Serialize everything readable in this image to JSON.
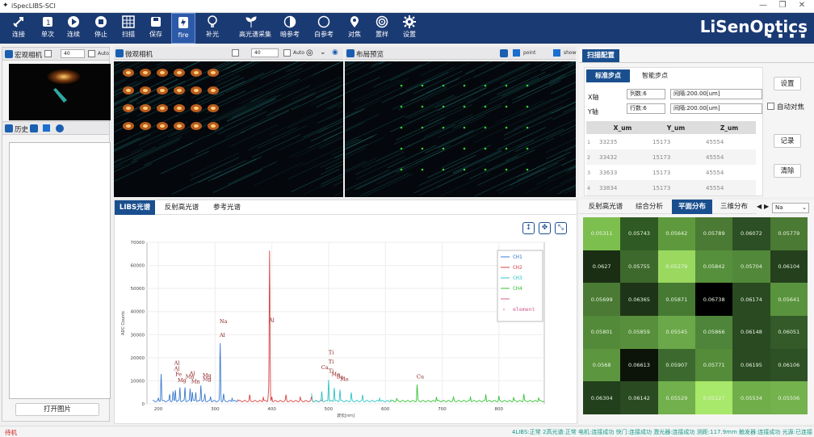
{
  "app": {
    "title": "iSpecLIBS-SCI"
  },
  "toolbar": [
    {
      "label": "连接",
      "icon": "link-icon"
    },
    {
      "label": "单次",
      "icon": "single-shot-icon"
    },
    {
      "label": "连续",
      "icon": "play-icon"
    },
    {
      "label": "停止",
      "icon": "stop-icon"
    },
    {
      "label": "扫描",
      "icon": "grid-icon"
    },
    {
      "label": "保存",
      "icon": "save-icon"
    },
    {
      "label": "fire",
      "icon": "fire-icon"
    },
    {
      "label": "补光",
      "icon": "bulb-icon"
    },
    {
      "label": "高光谱采集",
      "icon": "sprout-icon"
    },
    {
      "label": "暗参考",
      "icon": "half-moon-icon"
    },
    {
      "label": "白参考",
      "icon": "white-circle-icon"
    },
    {
      "label": "对焦",
      "icon": "pin-icon"
    },
    {
      "label": "置样",
      "icon": "target-icon"
    },
    {
      "label": "设置",
      "icon": "gear-icon"
    }
  ],
  "brand": {
    "name": "LiSenOptics",
    "tagline": "■ ■ ■ ■"
  },
  "macro": {
    "title": "宏观相机",
    "spin_value": "40",
    "auto_label": "Auto"
  },
  "micro": {
    "title": "微观相机",
    "spin_value": "40",
    "auto_label": "Auto"
  },
  "layout_preview": {
    "title": "布局预览",
    "point_label": "point",
    "show_label": "show"
  },
  "history": {
    "title": "历史",
    "open_image": "打开图片"
  },
  "spectrum_tabs": [
    "LIBS光谱",
    "反射高光谱",
    "参考光谱"
  ],
  "spectrum_chart": {
    "type": "line",
    "xlabel": "波长[nm]",
    "ylabel": "ADC Counts",
    "xlim": [
      180,
      880
    ],
    "ylim": [
      0,
      70000
    ],
    "yticks": [
      "0",
      "10000",
      "20000",
      "30000",
      "40000",
      "50000",
      "60000",
      "70000"
    ],
    "xticks": [
      "200",
      "300",
      "400",
      "500",
      "600",
      "700",
      "800"
    ],
    "legend": [
      "CH1",
      "CH2",
      "CH3",
      "CH4",
      "",
      "element"
    ],
    "legend_colors": [
      "#3b7ad0",
      "#d84444",
      "#2ec4c4",
      "#38c238",
      "#d06090",
      "#d06090"
    ],
    "series": [
      {
        "name": "CH1",
        "color": "#3b7ad0",
        "peaks": [
          [
            200,
            1000
          ],
          [
            205,
            12000
          ],
          [
            220,
            3000
          ],
          [
            226,
            4000
          ],
          [
            230,
            5000
          ],
          [
            238,
            6000
          ],
          [
            247,
            6000
          ],
          [
            256,
            5500
          ],
          [
            260,
            4000
          ],
          [
            266,
            4000
          ],
          [
            275,
            7000
          ],
          [
            282,
            3000
          ],
          [
            292,
            2000
          ],
          [
            309,
            25000
          ],
          [
            315,
            3000
          ],
          [
            330,
            1500
          ],
          [
            340,
            800
          ]
        ]
      },
      {
        "name": "CH2",
        "color": "#d84444",
        "peaks": [
          [
            340,
            900
          ],
          [
            361,
            2500
          ],
          [
            385,
            1800
          ],
          [
            394,
            3500
          ],
          [
            396,
            65000
          ],
          [
            400,
            2000
          ],
          [
            425,
            2500
          ],
          [
            450,
            1500
          ],
          [
            470,
            1800
          ],
          [
            490,
            1200
          ]
        ]
      },
      {
        "name": "CH3",
        "color": "#2ec4c4",
        "peaks": [
          [
            470,
            3000
          ],
          [
            488,
            4000
          ],
          [
            500,
            9500
          ],
          [
            510,
            6000
          ],
          [
            520,
            5000
          ],
          [
            540,
            3500
          ],
          [
            560,
            2500
          ],
          [
            590,
            1500
          ],
          [
            610,
            800
          ]
        ]
      },
      {
        "name": "CH4",
        "color": "#38c238",
        "peaks": [
          [
            620,
            1000
          ],
          [
            656,
            7000
          ],
          [
            690,
            2000
          ],
          [
            720,
            1500
          ],
          [
            750,
            1800
          ],
          [
            777,
            3000
          ],
          [
            800,
            2000
          ],
          [
            826,
            1500
          ],
          [
            844,
            3000
          ],
          [
            870,
            1500
          ]
        ]
      }
    ],
    "annotations": [
      {
        "text": "Al",
        "x": 228,
        "y": 17000
      },
      {
        "text": "Al",
        "x": 228,
        "y": 14500
      },
      {
        "text": "Fe",
        "x": 230,
        "y": 12000
      },
      {
        "text": "Mg",
        "x": 234,
        "y": 9500
      },
      {
        "text": "Mn",
        "x": 248,
        "y": 11000
      },
      {
        "text": "Al",
        "x": 255,
        "y": 12500
      },
      {
        "text": "Mn",
        "x": 258,
        "y": 9000
      },
      {
        "text": "Mg",
        "x": 278,
        "y": 10000
      },
      {
        "text": "Mg",
        "x": 278,
        "y": 11500
      },
      {
        "text": "Na",
        "x": 308,
        "y": 35000
      },
      {
        "text": "Al",
        "x": 308,
        "y": 29000
      },
      {
        "text": "Al",
        "x": 395,
        "y": 35500
      },
      {
        "text": "Ti",
        "x": 500,
        "y": 21500
      },
      {
        "text": "Ti",
        "x": 500,
        "y": 17500
      },
      {
        "text": "Ca",
        "x": 487,
        "y": 15000
      },
      {
        "text": "Ti",
        "x": 500,
        "y": 13500
      },
      {
        "text": "Mo",
        "x": 505,
        "y": 12000
      },
      {
        "text": "Ba",
        "x": 514,
        "y": 11000
      },
      {
        "text": "Mo",
        "x": 520,
        "y": 10000
      },
      {
        "text": "Cu",
        "x": 655,
        "y": 11000
      }
    ]
  },
  "scan_config": {
    "tab": "扫描配置",
    "subtabs": [
      "标准步点",
      "智能步点"
    ],
    "x_axis": {
      "label": "X轴",
      "count": "列数:6",
      "interval": "间隔:200.00[um]"
    },
    "y_axis": {
      "label": "Y轴",
      "count": "行数:6",
      "interval": "间隔:200.00[um]"
    },
    "buttons": {
      "settings": "设置",
      "auto_focus": "自动对焦",
      "record": "记录",
      "clear": "清除"
    },
    "table": {
      "columns": [
        "X_um",
        "Y_um",
        "Z_um"
      ],
      "rows": [
        [
          "1",
          "33235",
          "15173",
          "45554"
        ],
        [
          "2",
          "33432",
          "15173",
          "45554"
        ],
        [
          "3",
          "33633",
          "15173",
          "45554"
        ],
        [
          "4",
          "33834",
          "15173",
          "45554"
        ]
      ]
    }
  },
  "analysis_tabs": [
    "反射高光谱",
    "综合分析",
    "平面分布",
    "三维分布"
  ],
  "element_select": "Na",
  "heatmap": {
    "values": [
      [
        "0.05311",
        "0.05743",
        "0.05642",
        "0.05789",
        "0.06072",
        "0.05779"
      ],
      [
        "0.0627",
        "0.05755",
        "0.05279",
        "0.05842",
        "0.05704",
        "0.06104"
      ],
      [
        "0.05699",
        "0.06365",
        "0.05871",
        "0.06738",
        "0.06174",
        "0.05641"
      ],
      [
        "0.05801",
        "0.05859",
        "0.05545",
        "0.05866",
        "0.06148",
        "0.06051"
      ],
      [
        "0.0568",
        "0.06613",
        "0.05907",
        "0.05771",
        "0.06195",
        "0.06106"
      ],
      [
        "0.06304",
        "0.06142",
        "0.05529",
        "0.05127",
        "0.05534",
        "0.05506"
      ]
    ],
    "colors": [
      [
        "#7dbf4e",
        "#2f5a23",
        "#5e9a3d",
        "#4a7a33",
        "#2c4f25",
        "#4a7a33"
      ],
      [
        "#1a2e14",
        "#3d6a2c",
        "#9ad860",
        "#56903c",
        "#52883a",
        "#24401c"
      ],
      [
        "#4a7a33",
        "#1e3418",
        "#467a33",
        "#000000",
        "#2a4a22",
        "#5a933d"
      ],
      [
        "#538a3a",
        "#578f3c",
        "#6ba84a",
        "#4e853a",
        "#2a4a22",
        "#335a28"
      ],
      [
        "#5c963e",
        "#0c1409",
        "#3c6a2e",
        "#558c3a",
        "#2a4a22",
        "#2e5025"
      ],
      [
        "#22401b",
        "#2a4a22",
        "#71b04c",
        "#a8e86a",
        "#70ae4a",
        "#74b24d"
      ]
    ]
  },
  "status": {
    "left": "待机",
    "right": "4LIBS:正常 2高光谱:正常 电机:连接成功 快门:连接成功 激光器:连接成功 测距:117.9mm 触发器:连接成功 光源:已连接"
  }
}
